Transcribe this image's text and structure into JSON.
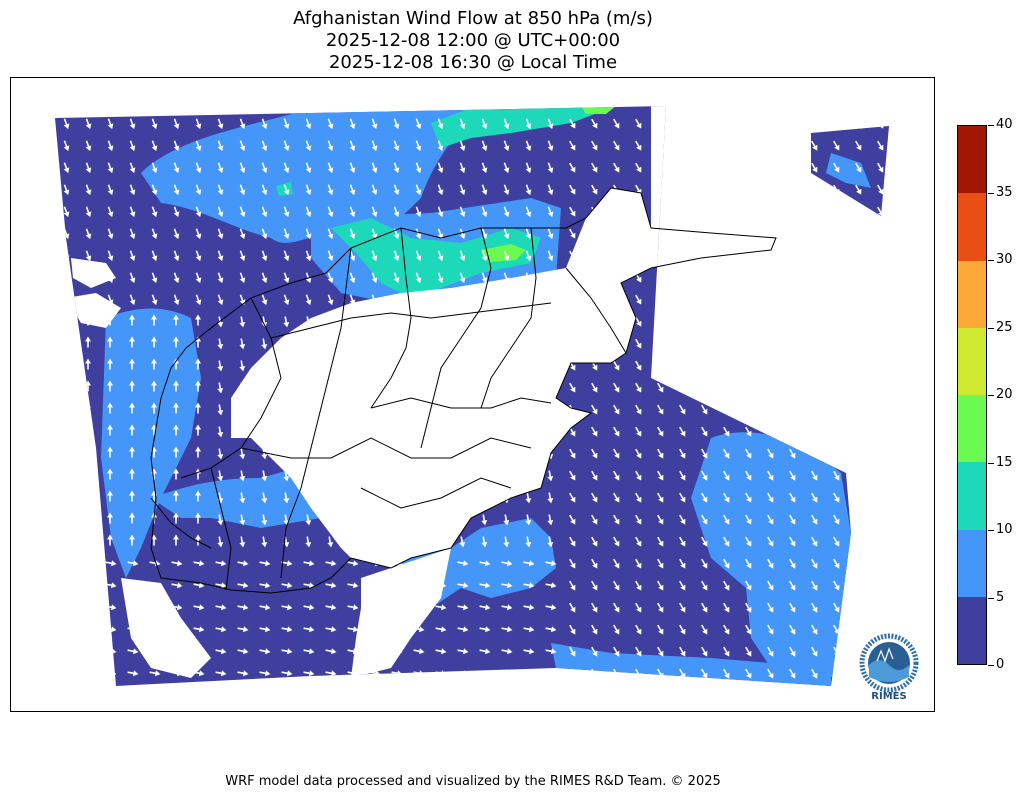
{
  "title": {
    "line1": "Afghanistan Wind Flow at 850 hPa (m/s)",
    "line2": "2025-12-08 12:00 @ UTC+00:00",
    "line3": "2025-12-08 16:30 @ Local Time"
  },
  "colorbar": {
    "ticks": [
      "0",
      "5",
      "10",
      "15",
      "20",
      "25",
      "30",
      "35",
      "40"
    ],
    "levels": [
      {
        "range": "0-5",
        "color": "#3f3f9f"
      },
      {
        "range": "5-10",
        "color": "#4496f8"
      },
      {
        "range": "10-15",
        "color": "#1dd9b9"
      },
      {
        "range": "15-20",
        "color": "#6afa52"
      },
      {
        "range": "20-25",
        "color": "#cfe830"
      },
      {
        "range": "25-30",
        "color": "#fca938"
      },
      {
        "range": "30-35",
        "color": "#e94f14"
      },
      {
        "range": "35-40",
        "color": "#a01804"
      }
    ]
  },
  "logo": {
    "text": "RIMES",
    "ring_text": "Regional Integrated Multi-Hazard Early Warning System"
  },
  "footer": "WRF model data processed and visualized by the RIMES R&D Team. © 2025"
}
